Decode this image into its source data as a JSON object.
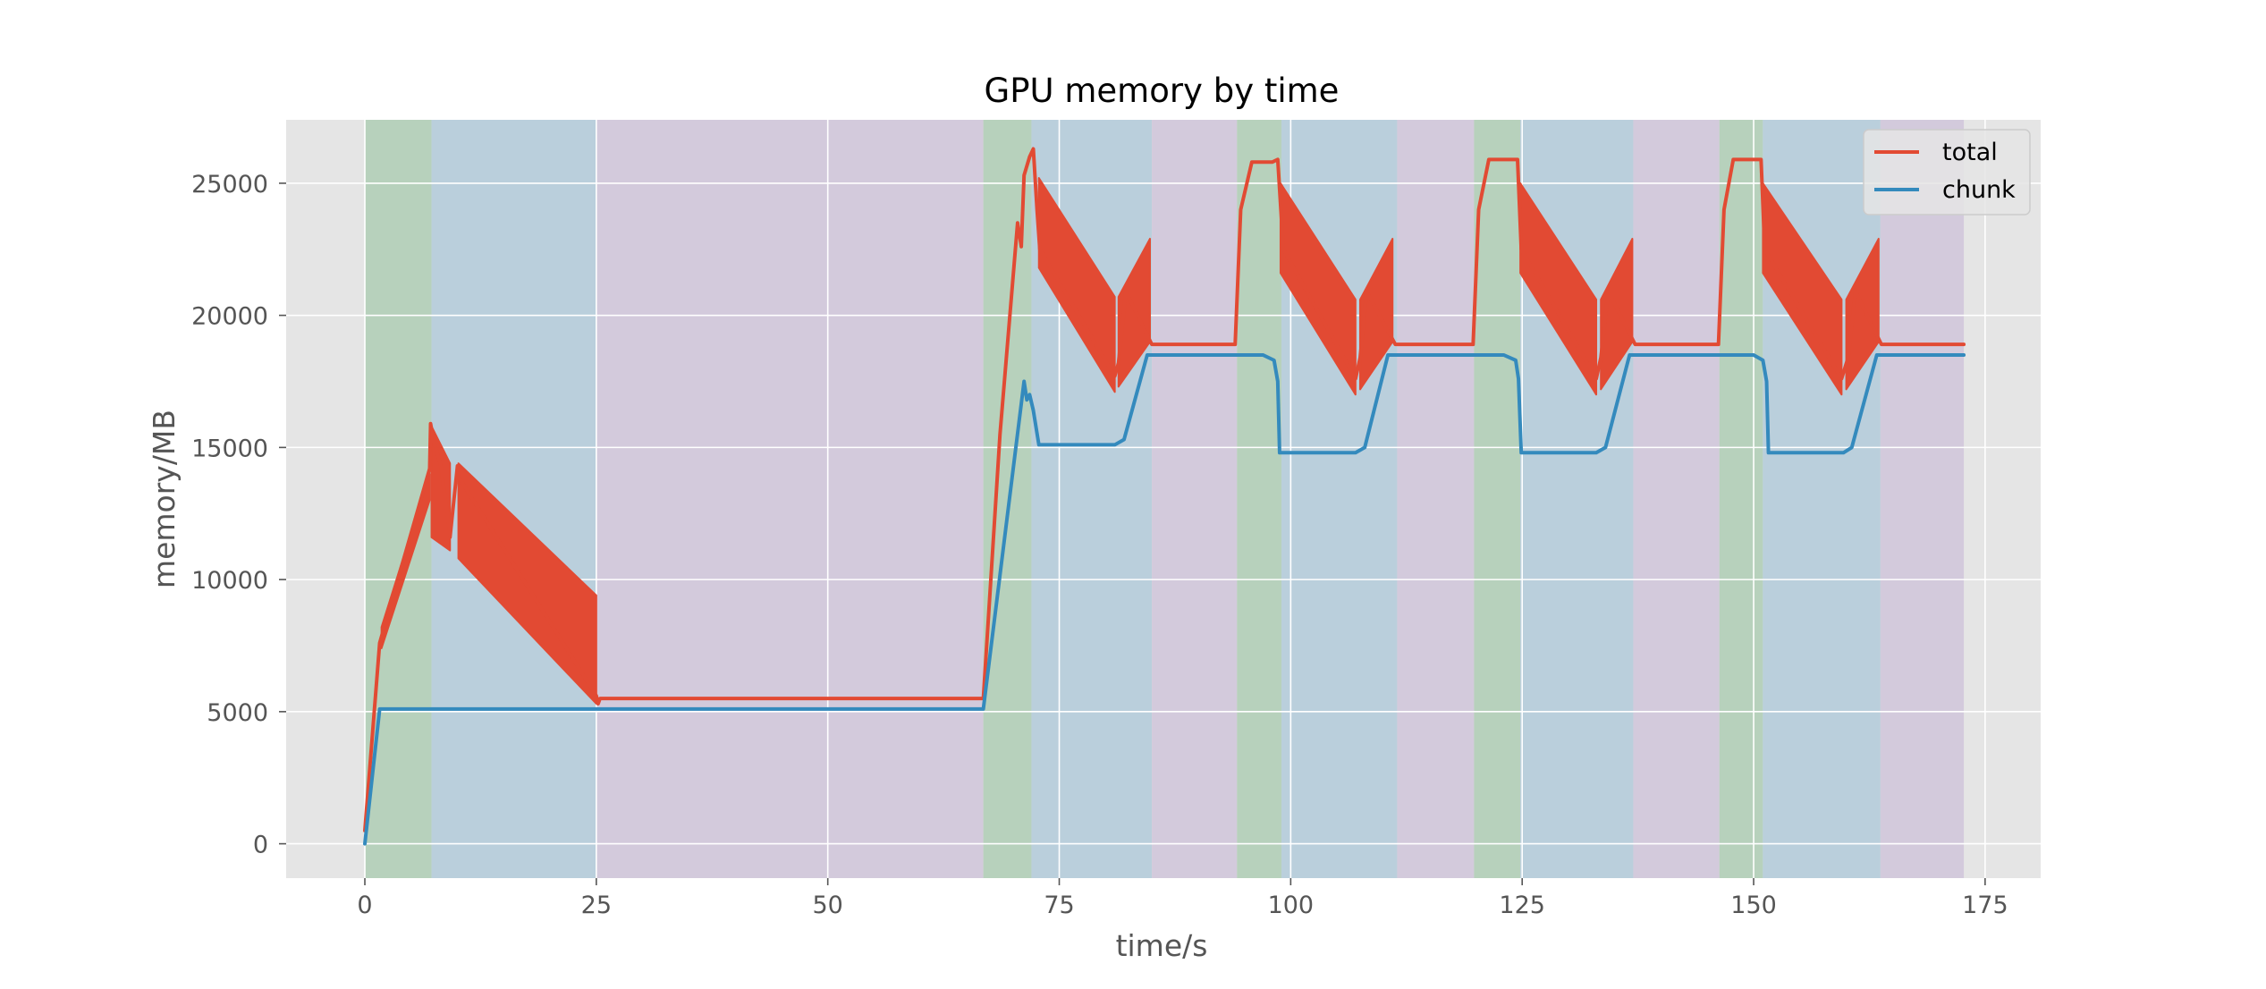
{
  "chart_data": {
    "type": "line",
    "title": "GPU memory by time",
    "xlabel": "time/s",
    "ylabel": "memory/MB",
    "xlim": [
      -8.5,
      181
    ],
    "ylim": [
      -1300,
      27400
    ],
    "xticks": [
      0,
      25,
      50,
      75,
      100,
      125,
      150,
      175
    ],
    "yticks": [
      0,
      5000,
      10000,
      15000,
      20000,
      25000
    ],
    "grid": true,
    "legend_position": "top-right",
    "colors": {
      "total": "#E24A33",
      "chunk": "#348ABD",
      "phase_green": "#B7D1BC",
      "phase_blue": "#BACFDC",
      "phase_purple": "#D3CADC",
      "axes_bg": "#E5E5E5",
      "grid": "#FFFFFF"
    },
    "phases": [
      {
        "start": 0,
        "end": 7.2,
        "kind": "green"
      },
      {
        "start": 7.2,
        "end": 25,
        "kind": "blue"
      },
      {
        "start": 25,
        "end": 66.8,
        "kind": "purple"
      },
      {
        "start": 66.8,
        "end": 72,
        "kind": "green"
      },
      {
        "start": 72,
        "end": 85,
        "kind": "blue"
      },
      {
        "start": 85,
        "end": 94.2,
        "kind": "purple"
      },
      {
        "start": 94.2,
        "end": 99,
        "kind": "green"
      },
      {
        "start": 99,
        "end": 111.5,
        "kind": "blue"
      },
      {
        "start": 111.5,
        "end": 119.8,
        "kind": "purple"
      },
      {
        "start": 119.8,
        "end": 124.8,
        "kind": "green"
      },
      {
        "start": 124.8,
        "end": 137,
        "kind": "blue"
      },
      {
        "start": 137,
        "end": 146.3,
        "kind": "purple"
      },
      {
        "start": 146.3,
        "end": 151,
        "kind": "green"
      },
      {
        "start": 151,
        "end": 163.7,
        "kind": "blue"
      },
      {
        "start": 163.7,
        "end": 172.7,
        "kind": "purple"
      }
    ],
    "series": [
      {
        "name": "total",
        "x": [
          0,
          1.6,
          7.0,
          7.1,
          7.4,
          8.2,
          9.1,
          9.2,
          10.0,
          10.1,
          25.0,
          25.2,
          25.4,
          66.8,
          68.6,
          70.5,
          70.9,
          71.2,
          71.8,
          72.2,
          72.6,
          72.9,
          81.0,
          81.4,
          82.2,
          85.0,
          94.0,
          94.6,
          95.8,
          98.0,
          98.6,
          99.2,
          107.0,
          107.5,
          108.2,
          111.3,
          119.7,
          120.3,
          121.4,
          124.0,
          124.5,
          124.9,
          133.0,
          133.5,
          134.3,
          137.2,
          146.2,
          146.8,
          147.8,
          150.0,
          150.8,
          151.2,
          159.5,
          160.2,
          161.0,
          163.8,
          172.7
        ],
        "y": [
          500,
          7600,
          14200,
          15900,
          15300,
          14300,
          12000,
          11600,
          14300,
          13900,
          5600,
          5300,
          5500,
          5500,
          15500,
          23500,
          22600,
          25300,
          26000,
          26300,
          24000,
          22500,
          17700,
          18200,
          20900,
          18900,
          18900,
          24000,
          25800,
          25800,
          25900,
          22500,
          17600,
          18400,
          20900,
          18900,
          18900,
          24000,
          25900,
          25900,
          25900,
          22500,
          17600,
          18400,
          20900,
          18900,
          18900,
          24000,
          25900,
          25900,
          25900,
          22500,
          17600,
          18400,
          20900,
          18900,
          18900
        ]
      },
      {
        "name": "chunk",
        "x": [
          0,
          1.6,
          66.8,
          71.2,
          71.5,
          71.8,
          72.2,
          72.8,
          81.0,
          82.0,
          84.5,
          97.0,
          98.2,
          98.6,
          98.8,
          107.0,
          108.0,
          110.5,
          123.0,
          124.3,
          124.6,
          124.9,
          133.0,
          134.0,
          136.6,
          150.0,
          151.0,
          151.4,
          151.6,
          159.7,
          160.6,
          163.3,
          172.7
        ],
        "y": [
          0,
          5100,
          5100,
          17500,
          16800,
          17000,
          16400,
          15100,
          15100,
          15300,
          18500,
          18500,
          18300,
          17500,
          14800,
          14800,
          15000,
          18500,
          18500,
          18300,
          17600,
          14800,
          14800,
          15000,
          18500,
          18500,
          18300,
          17500,
          14800,
          14800,
          15000,
          18500,
          18500
        ]
      }
    ],
    "bursts": [
      {
        "series": "total",
        "x_start": 1.8,
        "x_end": 7.0,
        "y_low_start": 7400,
        "y_low_end": 13000,
        "y_high_start": 8200,
        "y_high_end": 14000
      },
      {
        "series": "total",
        "x_start": 7.2,
        "x_end": 9.2,
        "y_low_start": 11600,
        "y_low_end": 11100,
        "y_high_start": 15800,
        "y_high_end": 14400
      },
      {
        "series": "total",
        "x_start": 10.1,
        "x_end": 25.0,
        "y_low_start": 10800,
        "y_low_end": 5300,
        "y_high_start": 14400,
        "y_high_end": 9400
      },
      {
        "series": "total",
        "x_start": 72.8,
        "x_end": 81.0,
        "y_low_start": 21800,
        "y_low_end": 17100,
        "y_high_start": 25200,
        "y_high_end": 20700
      },
      {
        "series": "total",
        "x_start": 81.4,
        "x_end": 84.8,
        "y_low_start": 17300,
        "y_low_end": 19000,
        "y_high_start": 20700,
        "y_high_end": 22900
      },
      {
        "series": "total",
        "x_start": 98.9,
        "x_end": 107.0,
        "y_low_start": 21600,
        "y_low_end": 17000,
        "y_high_start": 25000,
        "y_high_end": 20600
      },
      {
        "series": "total",
        "x_start": 107.5,
        "x_end": 111.0,
        "y_low_start": 17200,
        "y_low_end": 19000,
        "y_high_start": 20600,
        "y_high_end": 22900
      },
      {
        "series": "total",
        "x_start": 124.8,
        "x_end": 133.0,
        "y_low_start": 21600,
        "y_low_end": 17000,
        "y_high_start": 25000,
        "y_high_end": 20600
      },
      {
        "series": "total",
        "x_start": 133.5,
        "x_end": 136.9,
        "y_low_start": 17200,
        "y_low_end": 19000,
        "y_high_start": 20600,
        "y_high_end": 22900
      },
      {
        "series": "total",
        "x_start": 151.0,
        "x_end": 159.5,
        "y_low_start": 21600,
        "y_low_end": 17000,
        "y_high_start": 25000,
        "y_high_end": 20600
      },
      {
        "series": "total",
        "x_start": 160.0,
        "x_end": 163.5,
        "y_low_start": 17200,
        "y_low_end": 19000,
        "y_high_start": 20600,
        "y_high_end": 22900
      }
    ]
  }
}
